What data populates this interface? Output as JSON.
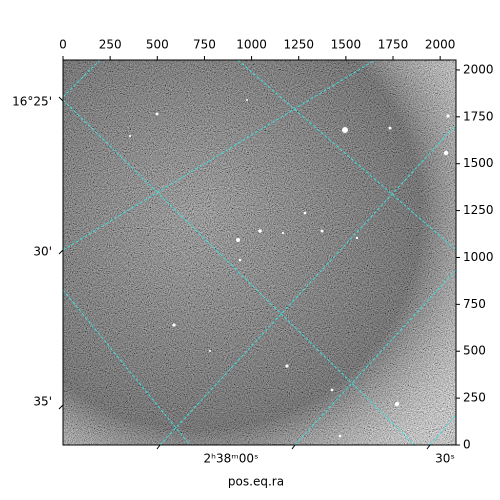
{
  "chart_data": {
    "type": "image",
    "xlabel": "pos.eq.ra",
    "xlim": [
      0,
      2084
    ],
    "xticks": [
      0,
      250,
      500,
      750,
      1000,
      1250,
      1500,
      1750,
      2000
    ],
    "ylim": [
      0,
      2053
    ],
    "yticks": [
      0,
      250,
      500,
      750,
      1000,
      1250,
      1500,
      1750,
      2000
    ],
    "dec_tick_labels": [
      "16°25'",
      "30'",
      "35'"
    ],
    "ra_tick_labels": [
      "2ʰ38ᵐ00ˢ",
      "30ˢ"
    ],
    "grid": true,
    "grid_color": "#3fe0e0"
  }
}
